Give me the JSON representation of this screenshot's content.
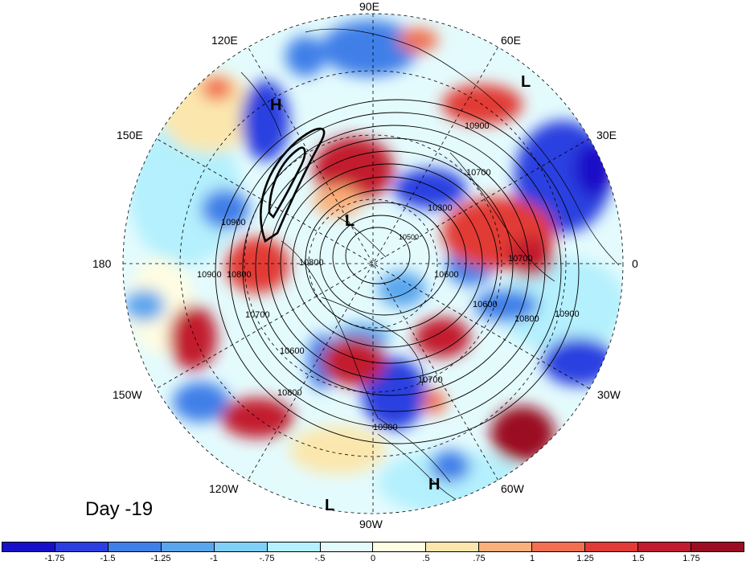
{
  "longitude_labels": {
    "n90e": "90E",
    "n60e": "60E",
    "n30e": "30E",
    "n0": "0",
    "n30w": "30W",
    "n60w": "60W",
    "n90w": "90W",
    "n120w": "120W",
    "n150w": "150W",
    "n180": "180",
    "n150e": "150E",
    "n120e": "120E"
  },
  "pressure_centers": [
    {
      "id": "h-north-pacific",
      "text": "H"
    },
    {
      "id": "l-ural",
      "text": "L"
    },
    {
      "id": "l-polar",
      "text": "L"
    },
    {
      "id": "h-caribbean",
      "text": "H"
    },
    {
      "id": "l-pacific-mexico",
      "text": "L"
    }
  ],
  "contour_labels": [
    "10900",
    "10700",
    "10300",
    "10500",
    "10700",
    "10600",
    "10800",
    "10900",
    "10900",
    "10800",
    "10700",
    "10600",
    "10800",
    "10900",
    "10700",
    "10600",
    "10900",
    "10800"
  ],
  "day_label": "Day -19",
  "colorbar": {
    "colors": [
      "#1a0fc8",
      "#2b3fe0",
      "#3f7fe8",
      "#5aa6ee",
      "#7fd0f8",
      "#b4f0fd",
      "#e4fbfd",
      "#fffde2",
      "#fbe7ad",
      "#f9b07a",
      "#f2704f",
      "#e23a36",
      "#c21a2e",
      "#9b0d23"
    ],
    "ticks": [
      "-1.75",
      "-1.5",
      "-1.25",
      "-1",
      "-.75",
      "-.5",
      "0",
      ".5",
      ".75",
      "1",
      "1.25",
      "1.5",
      "1.75"
    ]
  }
}
